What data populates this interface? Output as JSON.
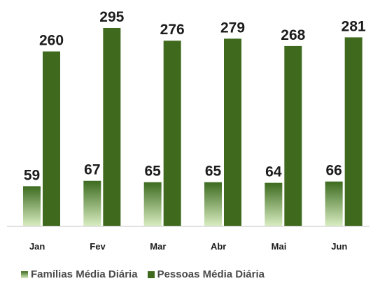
{
  "chart_data": {
    "type": "bar",
    "categories": [
      "Jan",
      "Fev",
      "Mar",
      "Abr",
      "Mai",
      "Jun"
    ],
    "series": [
      {
        "name": "Famílias Média Diária",
        "values": [
          59,
          67,
          65,
          65,
          64,
          66
        ]
      },
      {
        "name": "Pessoas Média Diária",
        "values": [
          260,
          295,
          276,
          279,
          268,
          281
        ]
      }
    ],
    "ylim": [
      0,
      320
    ],
    "grid": false,
    "legend": "bottom",
    "data_labels": true,
    "colors": {
      "familias_top": "#3c6b1f",
      "familias_bottom": "#d8ecc0",
      "pessoas": "#3f6a1e",
      "axis": "#bfbfbf"
    }
  }
}
